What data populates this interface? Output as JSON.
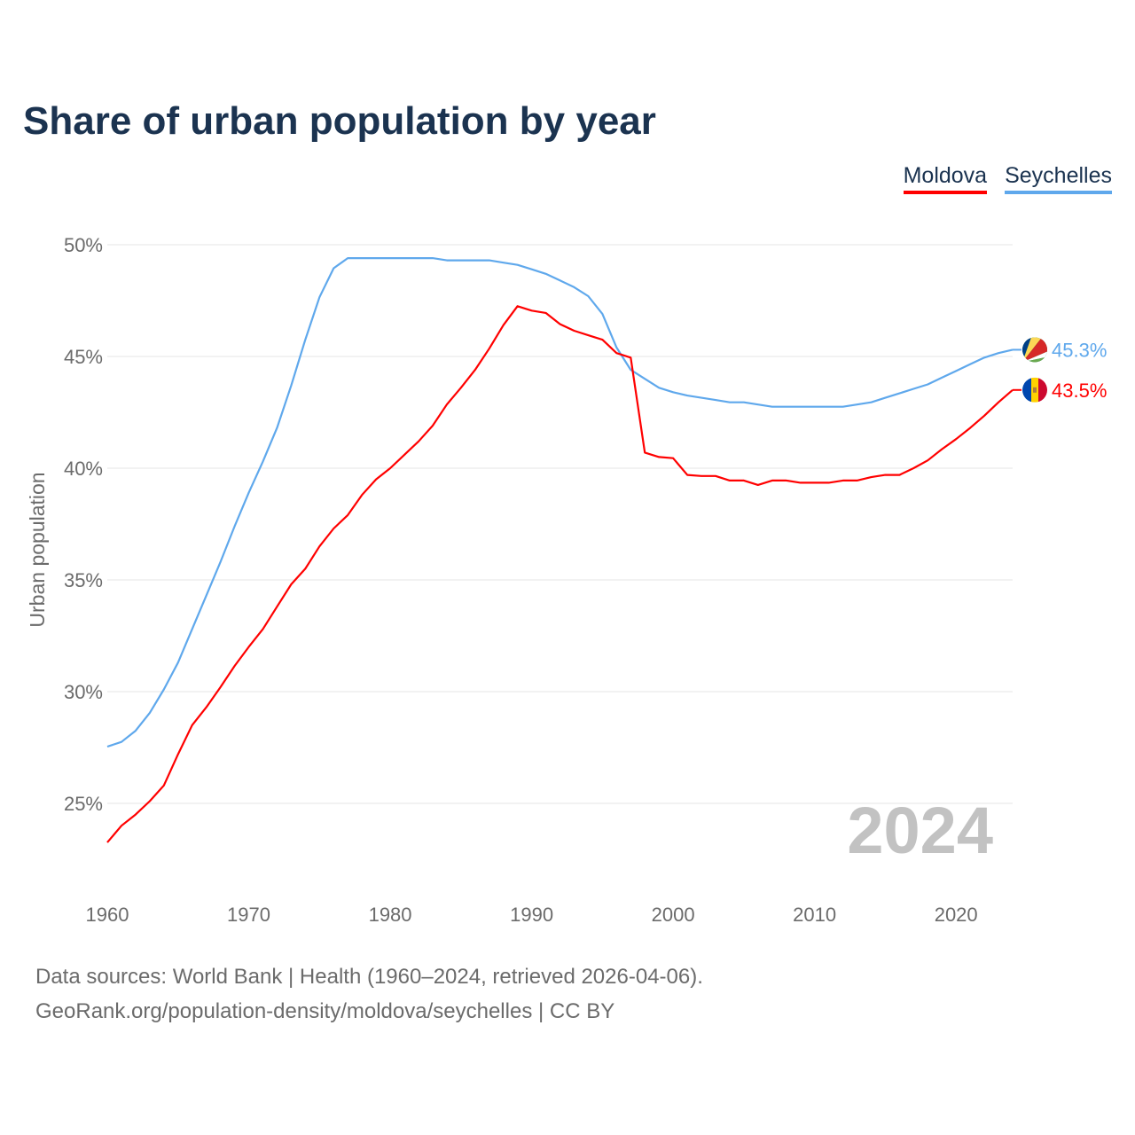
{
  "title": "Share of urban population by year",
  "footer": {
    "line1": "Data sources: World Bank | Health (1960–2024, retrieved 2026-04-06).",
    "line2": "GeoRank.org/population-density/moldova/seychelles | CC BY"
  },
  "chart_data": {
    "type": "line",
    "title": "Share of urban population by year",
    "xlabel": "",
    "ylabel": "Urban population",
    "year_watermark": "2024",
    "xlim": [
      1960,
      2024
    ],
    "ylim": [
      23,
      51
    ],
    "yticks": [
      25,
      30,
      35,
      40,
      45,
      50
    ],
    "ytick_labels": [
      "25%",
      "30%",
      "35%",
      "40%",
      "45%",
      "50%"
    ],
    "xticks": [
      1960,
      1970,
      1980,
      1990,
      2000,
      2010,
      2020
    ],
    "xtick_labels": [
      "1960",
      "1970",
      "1980",
      "1990",
      "2000",
      "2010",
      "2020"
    ],
    "grid": true,
    "legend_placement": "top-right",
    "x_start": 1960,
    "series": [
      {
        "name": "Moldova",
        "color": "#ff0000",
        "end_label": "43.5%",
        "flag": "moldova-flag",
        "values": [
          23.25,
          24.0,
          24.5,
          25.1,
          25.8,
          27.2,
          28.5,
          29.3,
          30.2,
          31.15,
          32.0,
          32.8,
          33.8,
          34.8,
          35.5,
          36.5,
          37.3,
          37.9,
          38.8,
          39.5,
          40.0,
          40.6,
          41.2,
          41.9,
          42.85,
          43.6,
          44.4,
          45.35,
          46.4,
          47.25,
          47.05,
          46.95,
          46.45,
          46.15,
          45.95,
          45.75,
          45.15,
          44.95,
          40.7,
          40.5,
          40.45,
          39.7,
          39.65,
          39.65,
          39.45,
          39.45,
          39.25,
          39.45,
          39.45,
          39.35,
          39.35,
          39.35,
          39.45,
          39.45,
          39.6,
          39.7,
          39.7,
          40.0,
          40.35,
          40.85,
          41.3,
          41.8,
          42.35,
          42.95,
          43.5
        ]
      },
      {
        "name": "Seychelles",
        "color": "#5fa8ec",
        "end_label": "45.3%",
        "flag": "seychelles-flag",
        "values": [
          27.54,
          27.75,
          28.25,
          29.05,
          30.1,
          31.3,
          32.8,
          34.3,
          35.8,
          37.4,
          38.9,
          40.3,
          41.8,
          43.7,
          45.75,
          47.65,
          48.95,
          49.4,
          49.4,
          49.4,
          49.4,
          49.4,
          49.4,
          49.4,
          49.3,
          49.3,
          49.3,
          49.3,
          49.2,
          49.1,
          48.9,
          48.7,
          48.4,
          48.1,
          47.7,
          46.9,
          45.4,
          44.4,
          44.0,
          43.6,
          43.4,
          43.25,
          43.15,
          43.05,
          42.95,
          42.95,
          42.85,
          42.75,
          42.75,
          42.75,
          42.75,
          42.75,
          42.75,
          42.85,
          42.95,
          43.15,
          43.35,
          43.55,
          43.75,
          44.05,
          44.35,
          44.65,
          44.95,
          45.15,
          45.3
        ]
      }
    ]
  }
}
